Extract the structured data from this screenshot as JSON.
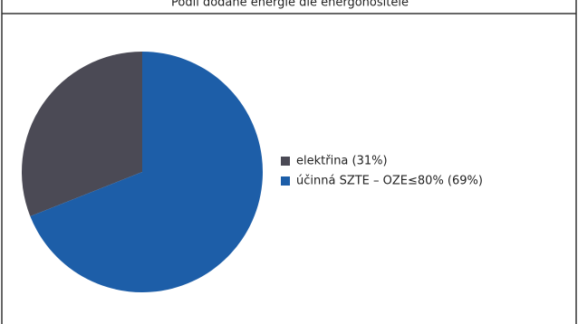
{
  "chart_data": {
    "type": "pie",
    "title": "Podíl dodané energie dle energonositele",
    "categories": [
      "elektřina (31%)",
      "účinná SZTE – OZE≤80% (69%)"
    ],
    "values": [
      31,
      69
    ],
    "colors": [
      "#4b4a55",
      "#1d5ea8"
    ],
    "legend": "right"
  }
}
